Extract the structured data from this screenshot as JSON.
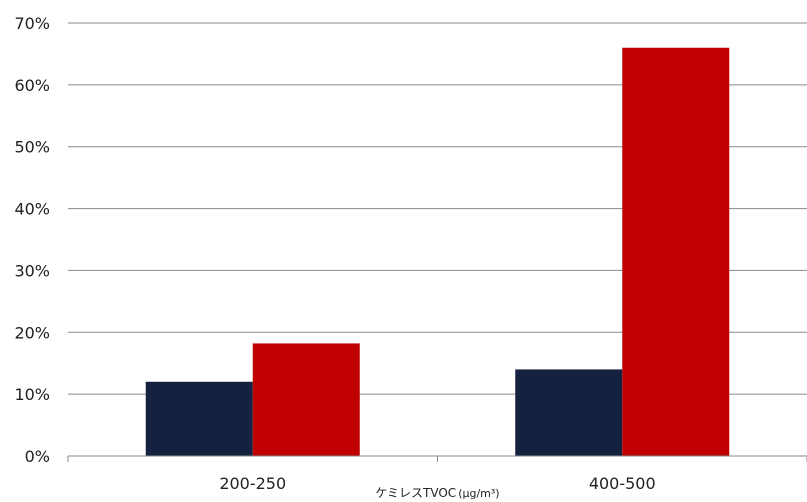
{
  "chart_data": {
    "type": "bar",
    "categories": [
      "200-250",
      "400-500"
    ],
    "series": [
      {
        "values": [
          12,
          14
        ],
        "color": "#14223f"
      },
      {
        "values": [
          18.2,
          66
        ],
        "color": "#c00000"
      }
    ],
    "xlabel": "ケミレスTVOC",
    "xlabel_unit": "(μg/m³)",
    "ylabel": "",
    "ylim": [
      0,
      70
    ],
    "yticks": [
      0,
      10,
      20,
      30,
      40,
      50,
      60,
      70
    ],
    "ytick_labels": [
      "0%",
      "10%",
      "20%",
      "30%",
      "40%",
      "50%",
      "60%",
      "70%"
    ],
    "grid": true,
    "legend": "none"
  }
}
